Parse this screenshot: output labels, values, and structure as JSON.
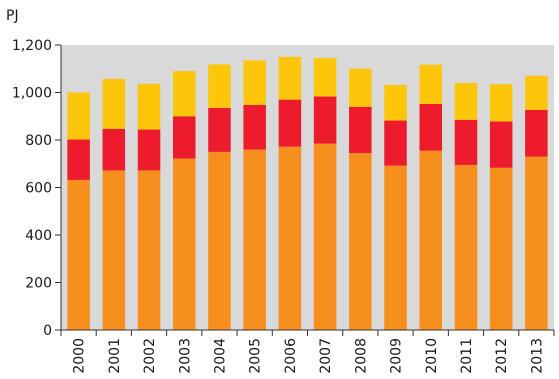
{
  "chart_data": {
    "type": "bar",
    "stacked": true,
    "unit_label": "PJ",
    "title": "",
    "xlabel": "",
    "ylabel": "",
    "ylim": [
      0,
      1200
    ],
    "y_ticks": [
      0,
      200,
      400,
      600,
      800,
      1000,
      1200
    ],
    "y_tick_labels": [
      "0",
      "200",
      "400",
      "600",
      "800",
      "1,000",
      "1,200"
    ],
    "grid": false,
    "background": "#d9d9d9",
    "categories": [
      "2000",
      "2001",
      "2002",
      "2003",
      "2004",
      "2005",
      "2006",
      "2007",
      "2008",
      "2009",
      "2010",
      "2011",
      "2012",
      "2013"
    ],
    "series": [
      {
        "color": "#f78f1e",
        "values": [
          632,
          672,
          672,
          722,
          750,
          760,
          772,
          785,
          745,
          692,
          755,
          695,
          683,
          730
        ]
      },
      {
        "color": "#ec1c2d",
        "values": [
          170,
          175,
          172,
          178,
          185,
          188,
          198,
          198,
          195,
          190,
          197,
          190,
          195,
          197
        ]
      },
      {
        "color": "#fdc60a",
        "values": [
          198,
          210,
          193,
          190,
          183,
          187,
          180,
          162,
          160,
          150,
          165,
          155,
          157,
          143
        ]
      }
    ]
  }
}
